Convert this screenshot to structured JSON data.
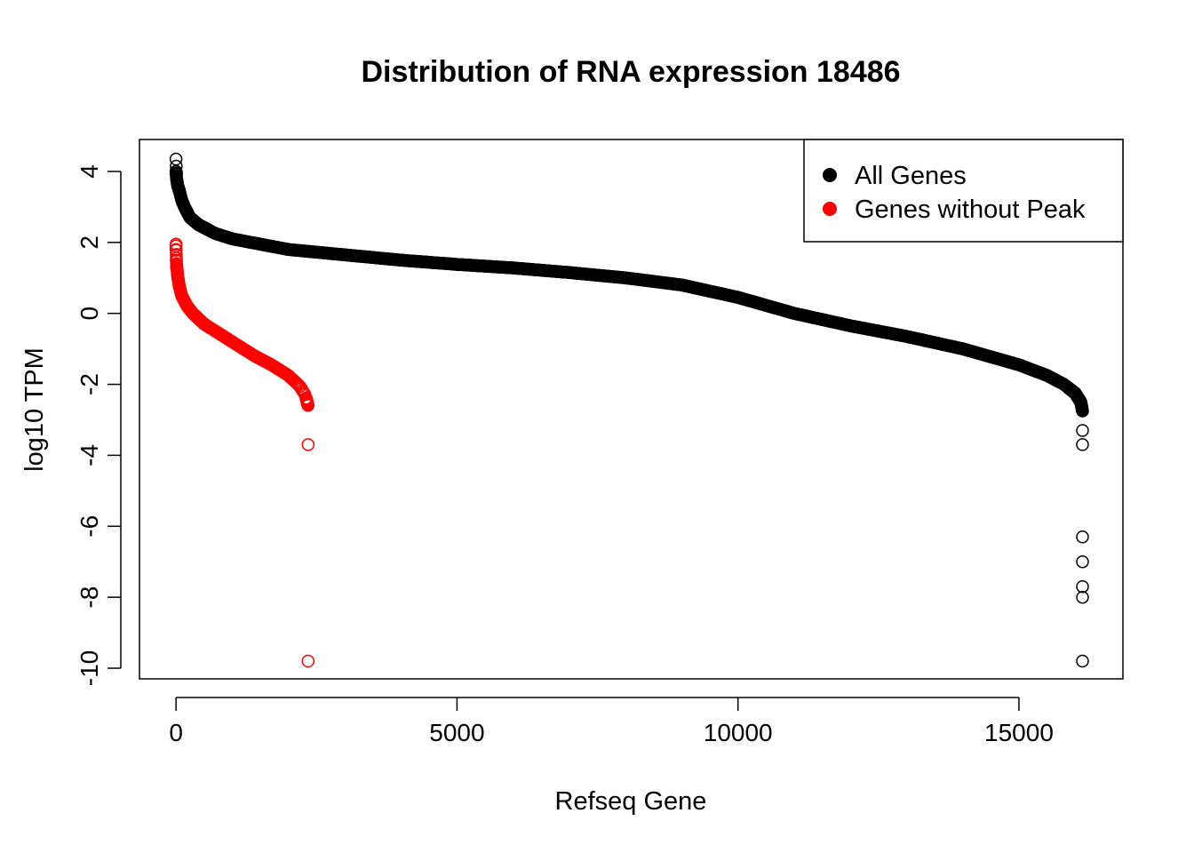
{
  "chart_data": {
    "type": "scatter",
    "title": "Distribution of RNA expression 18486",
    "xlabel": "Refseq Gene",
    "ylabel": "log10 TPM",
    "xlim": [
      -650,
      16850
    ],
    "ylim": [
      -10.3,
      4.9
    ],
    "xticks": [
      0,
      5000,
      10000,
      15000
    ],
    "xtick_labels": [
      "0",
      "5000",
      "10000",
      "15000"
    ],
    "yticks": [
      4,
      2,
      0,
      -2,
      -4,
      -6,
      -8,
      -10
    ],
    "ytick_labels": [
      "4",
      "2",
      "0",
      "-2",
      "-4",
      "-6",
      "-8",
      "-10"
    ],
    "legend": {
      "position": "top-right",
      "entries": [
        {
          "label": "All Genes",
          "color": "#000000"
        },
        {
          "label": "Genes without Peak",
          "color": "#ff0000"
        }
      ]
    },
    "series": [
      {
        "name": "All Genes",
        "color": "#000000",
        "marker": "open-circle",
        "n": 16130,
        "curve": [
          [
            0,
            4.0
          ],
          [
            5,
            3.9
          ],
          [
            10,
            3.8
          ],
          [
            30,
            3.6
          ],
          [
            60,
            3.45
          ],
          [
            100,
            3.2
          ],
          [
            150,
            3.0
          ],
          [
            250,
            2.7
          ],
          [
            400,
            2.5
          ],
          [
            700,
            2.25
          ],
          [
            1000,
            2.1
          ],
          [
            1500,
            1.95
          ],
          [
            2000,
            1.8
          ],
          [
            3000,
            1.65
          ],
          [
            4000,
            1.5
          ],
          [
            5000,
            1.38
          ],
          [
            6000,
            1.28
          ],
          [
            7000,
            1.15
          ],
          [
            8000,
            1.0
          ],
          [
            9000,
            0.8
          ],
          [
            10000,
            0.45
          ],
          [
            11000,
            0.0
          ],
          [
            12000,
            -0.35
          ],
          [
            13000,
            -0.65
          ],
          [
            14000,
            -1.0
          ],
          [
            15000,
            -1.45
          ],
          [
            15500,
            -1.75
          ],
          [
            15800,
            -2.0
          ],
          [
            16000,
            -2.25
          ],
          [
            16100,
            -2.5
          ],
          [
            16130,
            -2.75
          ]
        ],
        "outliers": [
          [
            0,
            4.35
          ],
          [
            5,
            4.15
          ],
          [
            10,
            3.95
          ],
          [
            16130,
            -3.3
          ],
          [
            16130,
            -3.7
          ],
          [
            16130,
            -6.3
          ],
          [
            16130,
            -7.0
          ],
          [
            16130,
            -7.7
          ],
          [
            16130,
            -8.0
          ],
          [
            16130,
            -9.8
          ]
        ]
      },
      {
        "name": "Genes without Peak",
        "color": "#ff0000",
        "marker": "open-circle",
        "n": 2350,
        "curve": [
          [
            0,
            1.9
          ],
          [
            5,
            1.6
          ],
          [
            10,
            1.4
          ],
          [
            30,
            1.05
          ],
          [
            60,
            0.75
          ],
          [
            100,
            0.5
          ],
          [
            200,
            0.2
          ],
          [
            300,
            0.0
          ],
          [
            500,
            -0.3
          ],
          [
            800,
            -0.6
          ],
          [
            1100,
            -0.9
          ],
          [
            1400,
            -1.2
          ],
          [
            1700,
            -1.45
          ],
          [
            2000,
            -1.75
          ],
          [
            2200,
            -2.05
          ],
          [
            2300,
            -2.3
          ],
          [
            2350,
            -2.6
          ]
        ],
        "outliers": [
          [
            0,
            1.95
          ],
          [
            0,
            1.8
          ],
          [
            5,
            1.5
          ],
          [
            10,
            1.3
          ],
          [
            2330,
            -2.45
          ],
          [
            2340,
            -2.55
          ],
          [
            2350,
            -3.7
          ],
          [
            2350,
            -9.8
          ]
        ]
      }
    ]
  }
}
